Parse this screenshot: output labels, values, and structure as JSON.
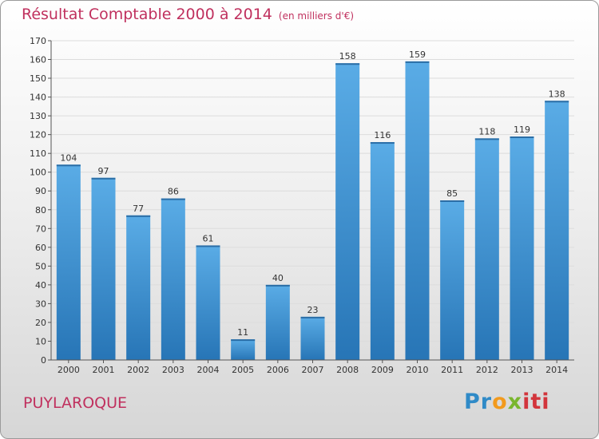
{
  "chart_data": {
    "type": "bar",
    "title": "Résultat Comptable 2000 à 2014",
    "subtitle": "(en milliers d'€)",
    "categories": [
      "2000",
      "2001",
      "2002",
      "2003",
      "2004",
      "2005",
      "2006",
      "2007",
      "2008",
      "2009",
      "2010",
      "2011",
      "2012",
      "2013",
      "2014"
    ],
    "values": [
      104,
      97,
      77,
      86,
      61,
      11,
      40,
      23,
      158,
      116,
      159,
      85,
      118,
      119,
      138
    ],
    "ylim": [
      0,
      170
    ],
    "yticks": [
      0,
      10,
      20,
      30,
      40,
      50,
      60,
      70,
      80,
      90,
      100,
      110,
      120,
      130,
      140,
      150,
      160,
      170
    ],
    "xlabel": "",
    "ylabel": "",
    "grid": true,
    "bar_color": "#3f94d3"
  },
  "commune": "PUYLAROQUE",
  "logo": {
    "parts": [
      "Pr",
      "o",
      "x",
      "iti"
    ]
  }
}
